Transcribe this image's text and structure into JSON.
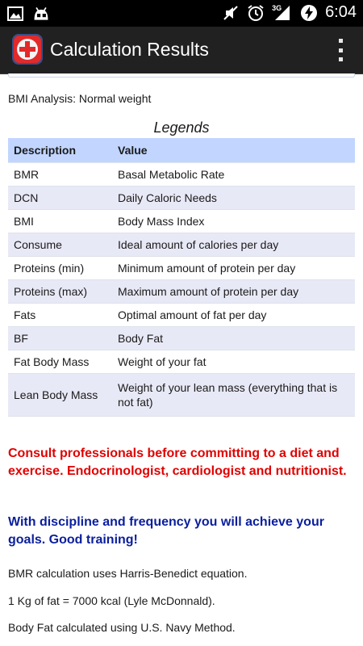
{
  "status_bar": {
    "time": "6:04",
    "network": "3G",
    "icons": [
      "picture-icon",
      "android-icon",
      "mute-icon",
      "alarm-icon",
      "signal-icon",
      "battery-charging-icon"
    ]
  },
  "action_bar": {
    "title": "Calculation Results",
    "app_icon": "red-cross-medical-icon",
    "menu_icon": "overflow-menu-icon"
  },
  "bmi_analysis": "BMI Analysis: Normal weight",
  "legends": {
    "title": "Legends",
    "headers": [
      "Description",
      "Value"
    ],
    "rows": [
      {
        "description": "BMR",
        "value": "Basal Metabolic Rate"
      },
      {
        "description": "DCN",
        "value": "Daily Caloric Needs"
      },
      {
        "description": "BMI",
        "value": "Body Mass Index"
      },
      {
        "description": "Consume",
        "value": "Ideal amount of calories per day"
      },
      {
        "description": "Proteins (min)",
        "value": "Minimum amount of protein per day"
      },
      {
        "description": "Proteins (max)",
        "value": "Maximum amount of protein per day"
      },
      {
        "description": "Fats",
        "value": "Optimal amount of fat per day"
      },
      {
        "description": "BF",
        "value": "Body Fat"
      },
      {
        "description": "Fat Body Mass",
        "value": "Weight of your fat"
      },
      {
        "description": "Lean Body Mass",
        "value": "Weight of your lean mass (everything that is not fat)"
      }
    ]
  },
  "warning": "Consult professionals before committing to a diet and exercise. Endocrinologist, cardiologist and nutritionist.",
  "motivation": "With discipline and frequency you will achieve your goals. Good training!",
  "notes": [
    "BMR calculation uses Harris-Benedict equation.",
    "1 Kg of fat = 7000 kcal (Lyle McDonnald).",
    "Body Fat calculated using U.S. Navy Method."
  ],
  "colors": {
    "header_bg": "#c1d5ff",
    "alt_row_bg": "#e8e9f6",
    "warning_text": "#e10000",
    "motivation_text": "#0a1e9c"
  }
}
